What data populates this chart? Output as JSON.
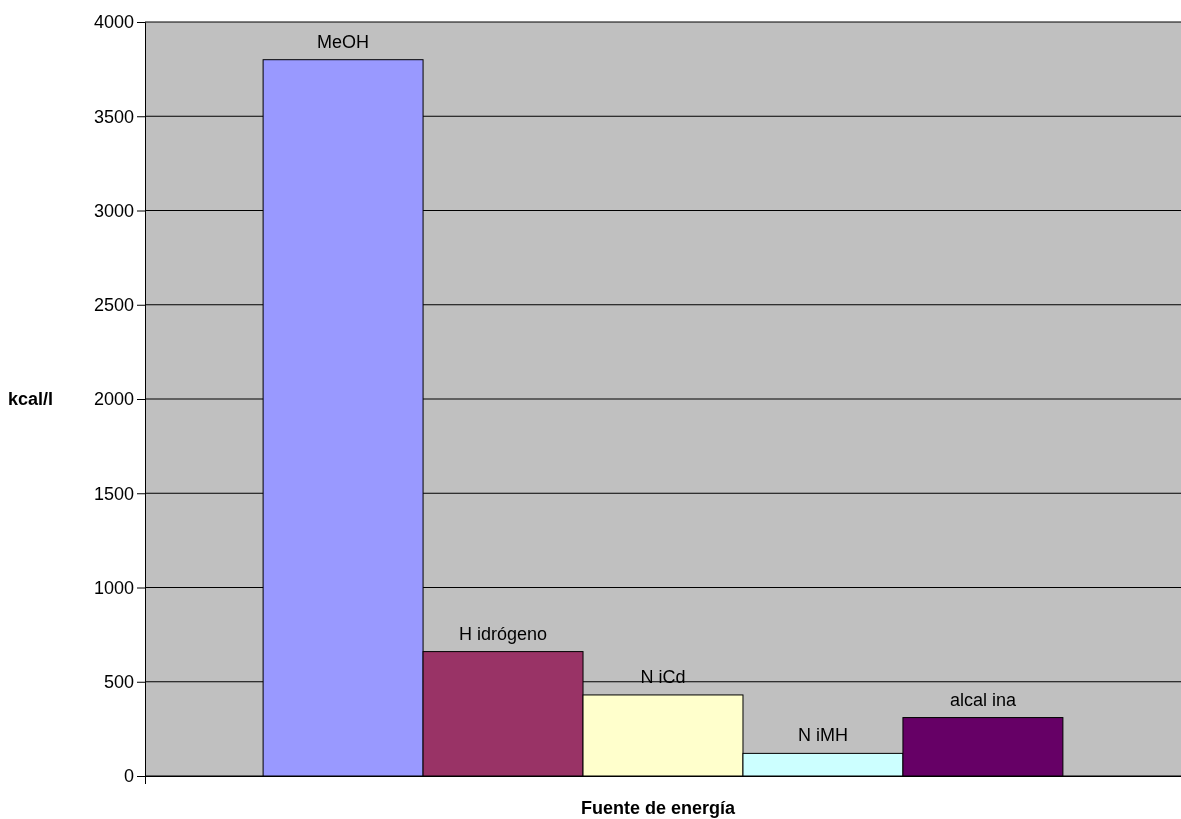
{
  "chart_data": {
    "type": "bar",
    "xlabel": "Fuente de energía",
    "ylabel": "kcal/l",
    "categories": [
      null
    ],
    "series": [
      {
        "name": "MeOH",
        "color": "#9999ff",
        "values": [
          3800
        ]
      },
      {
        "name": "H idrógeno",
        "color": "#993366",
        "values": [
          660
        ]
      },
      {
        "name": "N iCd",
        "color": "#ffffcc",
        "values": [
          430
        ]
      },
      {
        "name": "N iMH",
        "color": "#ccffff",
        "values": [
          120
        ]
      },
      {
        "name": "alcal ina",
        "color": "#660066",
        "values": [
          310
        ]
      }
    ],
    "ylim": [
      0,
      4000
    ],
    "yticks": [
      0,
      500,
      1000,
      1500,
      2000,
      2500,
      3000,
      3500,
      4000
    ],
    "grid": "y",
    "tick_labels": "y"
  }
}
